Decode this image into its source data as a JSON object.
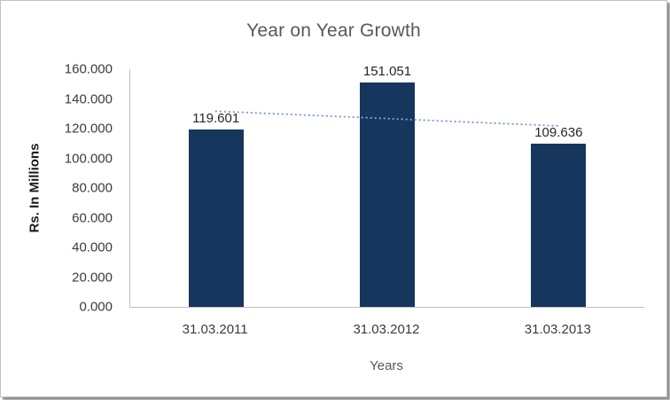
{
  "chart_data": {
    "type": "bar",
    "title": "Year on Year Growth",
    "xlabel": "Years",
    "ylabel": "Rs. In Millions",
    "categories": [
      "31.03.2011",
      "31.03.2012",
      "31.03.2013"
    ],
    "values": [
      119.601,
      151.051,
      109.636
    ],
    "data_labels": [
      "119.601",
      "151.051",
      "109.636"
    ],
    "ylim": [
      0,
      160
    ],
    "ytick_step": 20,
    "ytick_labels": [
      "0.000",
      "20.000",
      "40.000",
      "60.000",
      "80.000",
      "100.000",
      "120.000",
      "140.000",
      "160.000"
    ],
    "grid": false,
    "legend": false,
    "bar_color": "#17365D",
    "axis_color": "#BFBFBF",
    "title_color": "#595959",
    "text_color": "#3B3B3B",
    "trendline": {
      "type": "linear",
      "style": "dotted",
      "color": "#7CA1D4",
      "start_value": 131.7,
      "end_value": 121.8
    }
  }
}
